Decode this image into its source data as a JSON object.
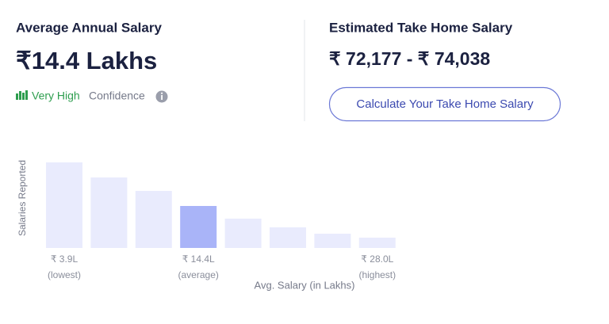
{
  "left": {
    "title": "Average Annual Salary",
    "amount": "₹14.4 Lakhs",
    "confidence_level": "Very High",
    "confidence_label": "Confidence"
  },
  "right": {
    "title": "Estimated Take Home Salary",
    "range": "₹ 72,177 - ₹ 74,038",
    "button": "Calculate Your Take Home Salary"
  },
  "chart_data": {
    "type": "bar",
    "y_label": "Salaries Reported",
    "x_label": "Avg. Salary (in Lakhs)",
    "categories": [
      "₹ 3.9L",
      null,
      null,
      "₹ 14.4L",
      null,
      null,
      null,
      "₹ 28.0L"
    ],
    "category_notes": [
      "(lowest)",
      null,
      null,
      "(average)",
      null,
      null,
      null,
      "(highest)"
    ],
    "values": [
      108,
      89,
      72,
      53,
      37,
      26,
      18,
      13
    ],
    "colors": [
      "#e9ebfd",
      "#e9ebfd",
      "#e9ebfd",
      "#a9b4f8",
      "#e9ebfd",
      "#e9ebfd",
      "#e9ebfd",
      "#e9ebfd"
    ]
  }
}
